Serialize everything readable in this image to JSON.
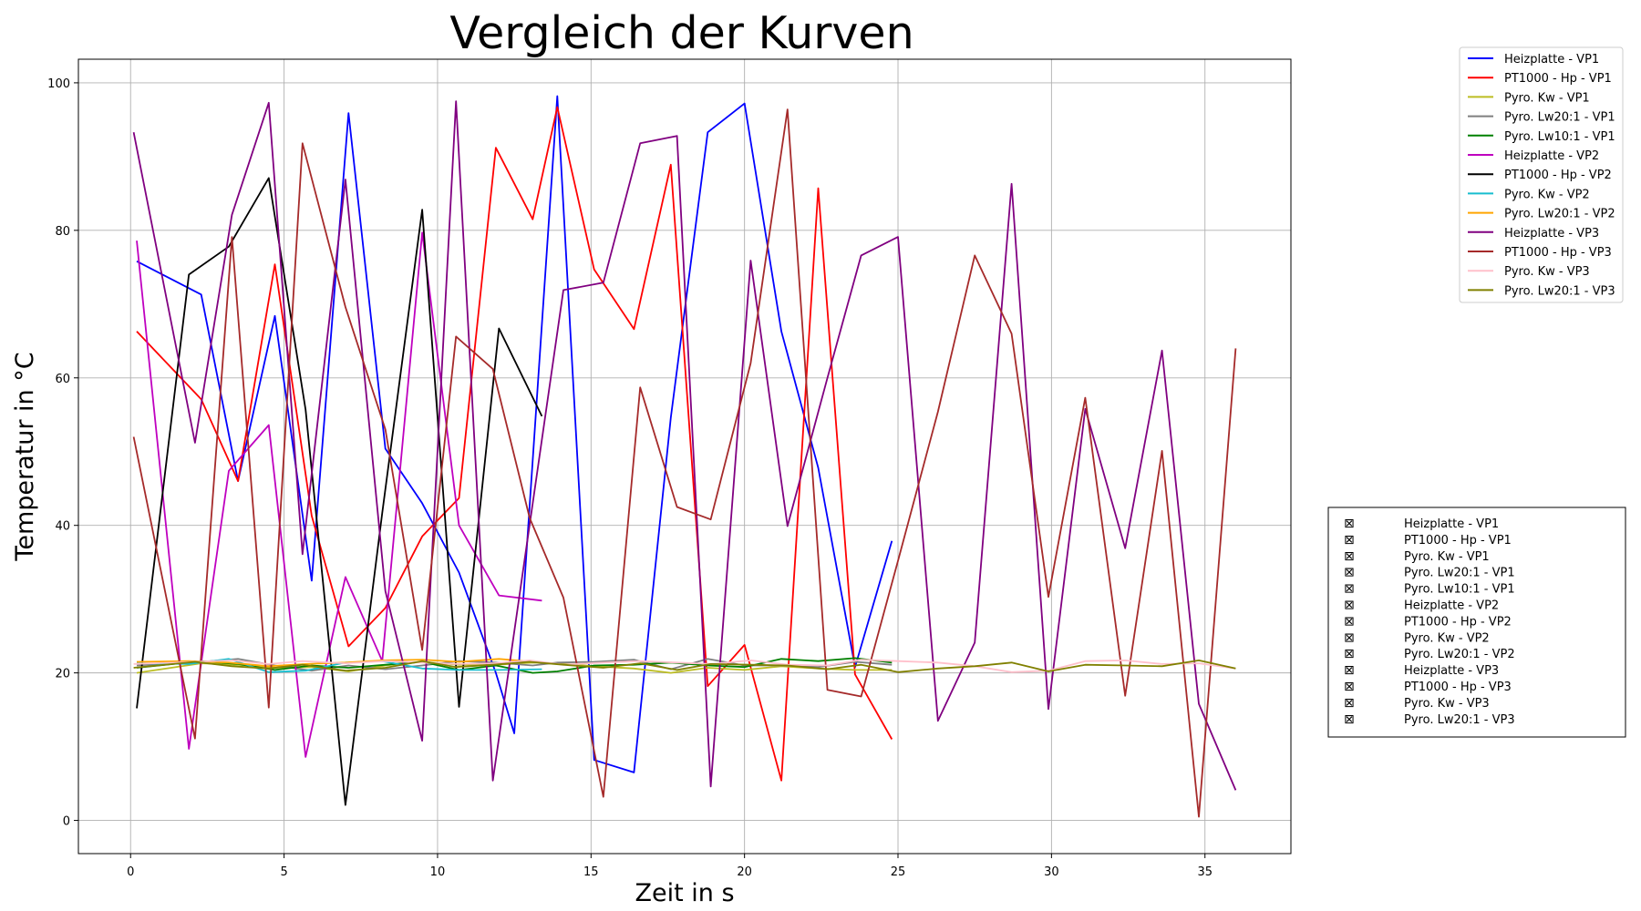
{
  "chart_data": {
    "type": "line",
    "title": "Vergleich der Kurven",
    "xlabel": "Zeit in s",
    "ylabel": "Temperatur in °C",
    "xlim": [
      -1.7,
      37.8
    ],
    "ylim": [
      -4.5,
      103.2
    ],
    "xticks": [
      0,
      5,
      10,
      15,
      20,
      25,
      30,
      35
    ],
    "yticks": [
      0,
      20,
      40,
      60,
      80,
      100
    ],
    "grid": true,
    "legend_position": "upper-right, outside plot",
    "series": [
      {
        "name": "Heizplatte - VP1",
        "color": "#0000ff",
        "x": [
          0.2,
          2.3,
          3.5,
          4.7,
          5.9,
          7.1,
          8.3,
          9.5,
          10.7,
          11.9,
          12.5,
          13.9,
          15.1,
          16.4,
          17.6,
          18.8,
          20.0,
          21.2,
          22.4,
          23.6,
          24.8
        ],
        "y": [
          75.8,
          71.3,
          46.0,
          68.4,
          32.5,
          95.9,
          50.4,
          43.0,
          33.6,
          20.0,
          11.8,
          98.2,
          8.2,
          6.5,
          54.6,
          93.3,
          97.2,
          66.3,
          47.8,
          20.8,
          37.9
        ]
      },
      {
        "name": "PT1000 - Hp - VP1",
        "color": "#ff0000",
        "x": [
          0.2,
          2.3,
          3.5,
          4.7,
          5.9,
          7.1,
          8.3,
          9.5,
          10.7,
          11.9,
          13.1,
          13.9,
          15.1,
          16.4,
          17.6,
          18.8,
          20.0,
          21.2,
          22.4,
          23.6,
          24.8
        ],
        "y": [
          66.3,
          57.1,
          46.0,
          75.4,
          41.3,
          23.6,
          28.8,
          38.5,
          43.7,
          91.2,
          81.5,
          96.7,
          74.7,
          66.6,
          88.9,
          18.2,
          23.8,
          5.4,
          85.7,
          19.8,
          11.0
        ]
      },
      {
        "name": "Pyro. Kw - VP1",
        "color": "#bcbd22",
        "x": [
          0.2,
          2.3,
          3.5,
          4.7,
          5.9,
          7.1,
          8.3,
          9.5,
          10.7,
          11.9,
          13.1,
          13.9,
          15.1,
          16.4,
          17.6,
          18.8,
          20.0,
          21.2,
          22.4,
          23.6,
          24.8
        ],
        "y": [
          20.0,
          21.3,
          21.1,
          20.7,
          20.8,
          20.2,
          21.0,
          21.5,
          21.1,
          21.1,
          21.4,
          21.3,
          20.9,
          20.6,
          20.0,
          20.7,
          20.4,
          20.9,
          20.6,
          20.4,
          20.4
        ]
      },
      {
        "name": "Pyro. Lw20:1 - VP1",
        "color": "#7f7f7f",
        "x": [
          0.2,
          2.3,
          3.5,
          4.7,
          5.9,
          7.1,
          8.3,
          9.5,
          10.7,
          11.9,
          13.1,
          13.9,
          15.1,
          16.4,
          17.6,
          18.8,
          20.0,
          21.2,
          22.4,
          23.6,
          24.8
        ],
        "y": [
          21.0,
          21.5,
          21.9,
          21.0,
          20.3,
          21.0,
          20.5,
          21.0,
          21.6,
          21.4,
          21.0,
          21.4,
          21.5,
          21.8,
          20.5,
          21.9,
          21.0,
          21.0,
          20.8,
          21.5,
          21.1
        ]
      },
      {
        "name": "Pyro. Lw10:1 - VP1",
        "color": "#008000",
        "x": [
          0.2,
          2.3,
          3.5,
          4.7,
          5.9,
          7.1,
          8.3,
          9.5,
          10.7,
          11.9,
          13.1,
          13.9,
          15.1,
          16.4,
          17.6,
          18.8,
          20.0,
          21.2,
          22.4,
          23.6,
          24.8
        ],
        "y": [
          20.7,
          21.6,
          21.2,
          20.4,
          21.0,
          20.7,
          21.1,
          21.5,
          20.4,
          21.0,
          20.0,
          20.2,
          21.0,
          21.1,
          21.4,
          21.0,
          20.8,
          21.9,
          21.6,
          22.0,
          21.4
        ]
      },
      {
        "name": "Heizplatte - VP2",
        "color": "#bf00bf",
        "x": [
          0.2,
          1.9,
          3.2,
          4.5,
          5.7,
          7.0,
          8.2,
          9.5,
          10.7,
          12.0,
          13.4
        ],
        "y": [
          78.6,
          9.7,
          47.4,
          53.6,
          8.6,
          33.0,
          21.6,
          79.7,
          40.0,
          30.5,
          29.8
        ]
      },
      {
        "name": "PT1000 - Hp - VP2",
        "color": "#000000",
        "x": [
          0.2,
          1.9,
          3.2,
          4.5,
          5.7,
          7.0,
          8.2,
          9.5,
          10.7,
          12.0,
          13.4
        ],
        "y": [
          15.2,
          74.0,
          77.8,
          87.1,
          55.7,
          2.1,
          41.7,
          82.8,
          15.4,
          66.7,
          54.8
        ]
      },
      {
        "name": "Pyro. Kw - VP2",
        "color": "#17becf",
        "x": [
          0.2,
          1.9,
          3.2,
          4.5,
          5.7,
          7.0,
          8.2,
          9.5,
          10.7,
          12.0,
          13.4
        ],
        "y": [
          21.3,
          21.2,
          21.9,
          20.1,
          20.3,
          21.4,
          21.6,
          20.6,
          20.4,
          20.4,
          20.5
        ]
      },
      {
        "name": "Pyro. Lw20:1 - VP2",
        "color": "#ffa500",
        "x": [
          0.2,
          1.9,
          3.2,
          4.5,
          5.7,
          7.0,
          8.2,
          9.5,
          10.7,
          12.0,
          13.4
        ],
        "y": [
          21.5,
          21.6,
          21.4,
          20.9,
          21.2,
          21.4,
          21.7,
          21.8,
          21.5,
          21.9,
          21.4
        ]
      },
      {
        "name": "Heizplatte - VP3",
        "color": "#800080",
        "x": [
          0.1,
          2.1,
          3.3,
          4.5,
          5.6,
          7.0,
          8.3,
          9.5,
          10.6,
          11.8,
          14.1,
          15.4,
          16.6,
          17.8,
          18.9,
          20.2,
          21.4,
          22.7,
          23.8,
          25.0,
          26.3,
          27.5,
          28.7,
          29.9,
          31.1,
          32.4,
          33.6,
          34.8,
          36.0
        ],
        "y": [
          93.3,
          51.2,
          82.1,
          97.3,
          36.1,
          86.9,
          31.1,
          10.8,
          97.5,
          5.4,
          71.9,
          72.9,
          91.8,
          92.8,
          4.6,
          75.9,
          39.9,
          60.0,
          76.6,
          79.1,
          13.5,
          24.1,
          86.3,
          15.1,
          55.8,
          36.9,
          63.7,
          15.8,
          4.1
        ]
      },
      {
        "name": "PT1000 - Hp - VP3",
        "color": "#a52a2a",
        "x": [
          0.1,
          2.1,
          3.3,
          4.5,
          5.6,
          7.0,
          8.3,
          9.5,
          10.6,
          11.8,
          13.0,
          14.1,
          15.4,
          16.6,
          17.8,
          18.9,
          20.2,
          21.4,
          22.7,
          23.8,
          25.0,
          26.3,
          27.5,
          28.7,
          29.9,
          31.1,
          32.4,
          33.6,
          34.8,
          36.0
        ],
        "y": [
          52.0,
          11.1,
          79.1,
          15.3,
          91.8,
          69.6,
          53.0,
          23.1,
          65.6,
          61.2,
          41.0,
          30.2,
          3.2,
          58.7,
          42.5,
          40.8,
          62.0,
          96.4,
          17.7,
          16.8,
          35.2,
          55.4,
          76.6,
          66.0,
          30.3,
          57.3,
          16.9,
          50.1,
          0.5,
          64.0
        ]
      },
      {
        "name": "Pyro. Kw - VP3",
        "color": "#ffc0cb",
        "x": [
          0.1,
          2.1,
          3.3,
          4.5,
          5.6,
          7.0,
          8.3,
          9.5,
          10.6,
          11.8,
          13.0,
          14.1,
          15.4,
          16.6,
          17.8,
          18.9,
          20.2,
          21.4,
          22.7,
          23.8,
          25.0,
          26.3,
          27.5,
          28.7,
          29.9,
          31.1,
          32.4,
          33.6,
          34.8,
          36.0
        ],
        "y": [
          21.2,
          21.5,
          21.7,
          21.2,
          21.6,
          21.3,
          21.6,
          21.4,
          21.2,
          21.3,
          21.7,
          21.1,
          21.4,
          21.6,
          21.4,
          21.2,
          21.7,
          21.1,
          21.0,
          21.8,
          21.6,
          21.4,
          20.9,
          20.1,
          20.3,
          21.6,
          21.7,
          21.2,
          21.3,
          20.6
        ]
      },
      {
        "name": "Pyro. Lw20:1 - VP3",
        "color": "#808000",
        "x": [
          0.1,
          2.1,
          3.3,
          4.5,
          5.6,
          7.0,
          8.3,
          9.5,
          10.6,
          11.8,
          13.0,
          14.1,
          15.4,
          16.6,
          17.8,
          18.9,
          20.2,
          21.4,
          22.7,
          23.8,
          25.0,
          26.3,
          27.5,
          28.7,
          29.9,
          31.1,
          32.4,
          33.6,
          34.8,
          36.0
        ],
        "y": [
          20.7,
          21.5,
          20.9,
          20.6,
          21.1,
          20.3,
          20.7,
          21.6,
          20.8,
          21.1,
          21.5,
          21.1,
          20.7,
          21.3,
          20.4,
          21.2,
          21.1,
          21.0,
          20.5,
          21.1,
          20.1,
          20.6,
          20.9,
          21.4,
          20.2,
          21.1,
          21.0,
          20.9,
          21.7,
          20.6
        ]
      }
    ]
  },
  "check_panel": {
    "box_glyph": "⊠",
    "labels": [
      "Heizplatte - VP1",
      "PT1000 - Hp - VP1",
      "Pyro. Kw - VP1",
      "Pyro. Lw20:1 - VP1",
      "Pyro. Lw10:1 - VP1",
      "Heizplatte - VP2",
      "PT1000 - Hp - VP2",
      "Pyro. Kw - VP2",
      "Pyro. Lw20:1 - VP2",
      "Heizplatte - VP3",
      "PT1000 - Hp - VP3",
      "Pyro. Kw - VP3",
      "Pyro. Lw20:1 - VP3"
    ]
  }
}
